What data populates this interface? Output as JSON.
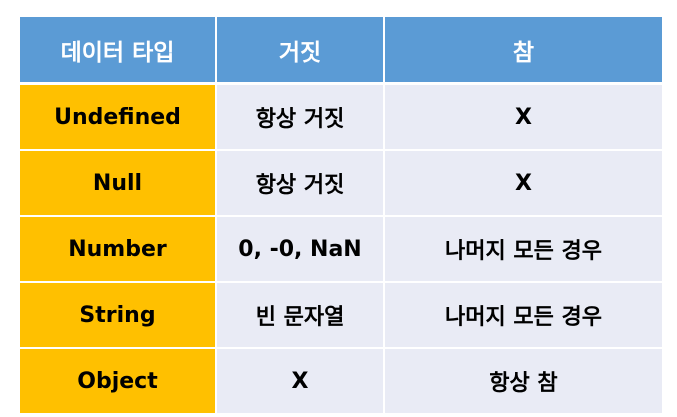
{
  "table": {
    "headers": [
      "데이터 타입",
      "거짓",
      "참"
    ],
    "rows": [
      {
        "type": "Undefined",
        "falsy": "항상 거짓",
        "truthy": "X"
      },
      {
        "type": "Null",
        "falsy": "항상 거짓",
        "truthy": "X"
      },
      {
        "type": "Number",
        "falsy": "0, -0, NaN",
        "truthy": "나머지 모든 경우"
      },
      {
        "type": "String",
        "falsy": "빈 문자열",
        "truthy": "나머지 모든 경우"
      },
      {
        "type": "Object",
        "falsy": "X",
        "truthy": "항상 참"
      }
    ]
  },
  "colors": {
    "header_bg": "#5B9BD5",
    "type_column_bg": "#FFC000",
    "cell_bg": "#E9EBF5"
  }
}
